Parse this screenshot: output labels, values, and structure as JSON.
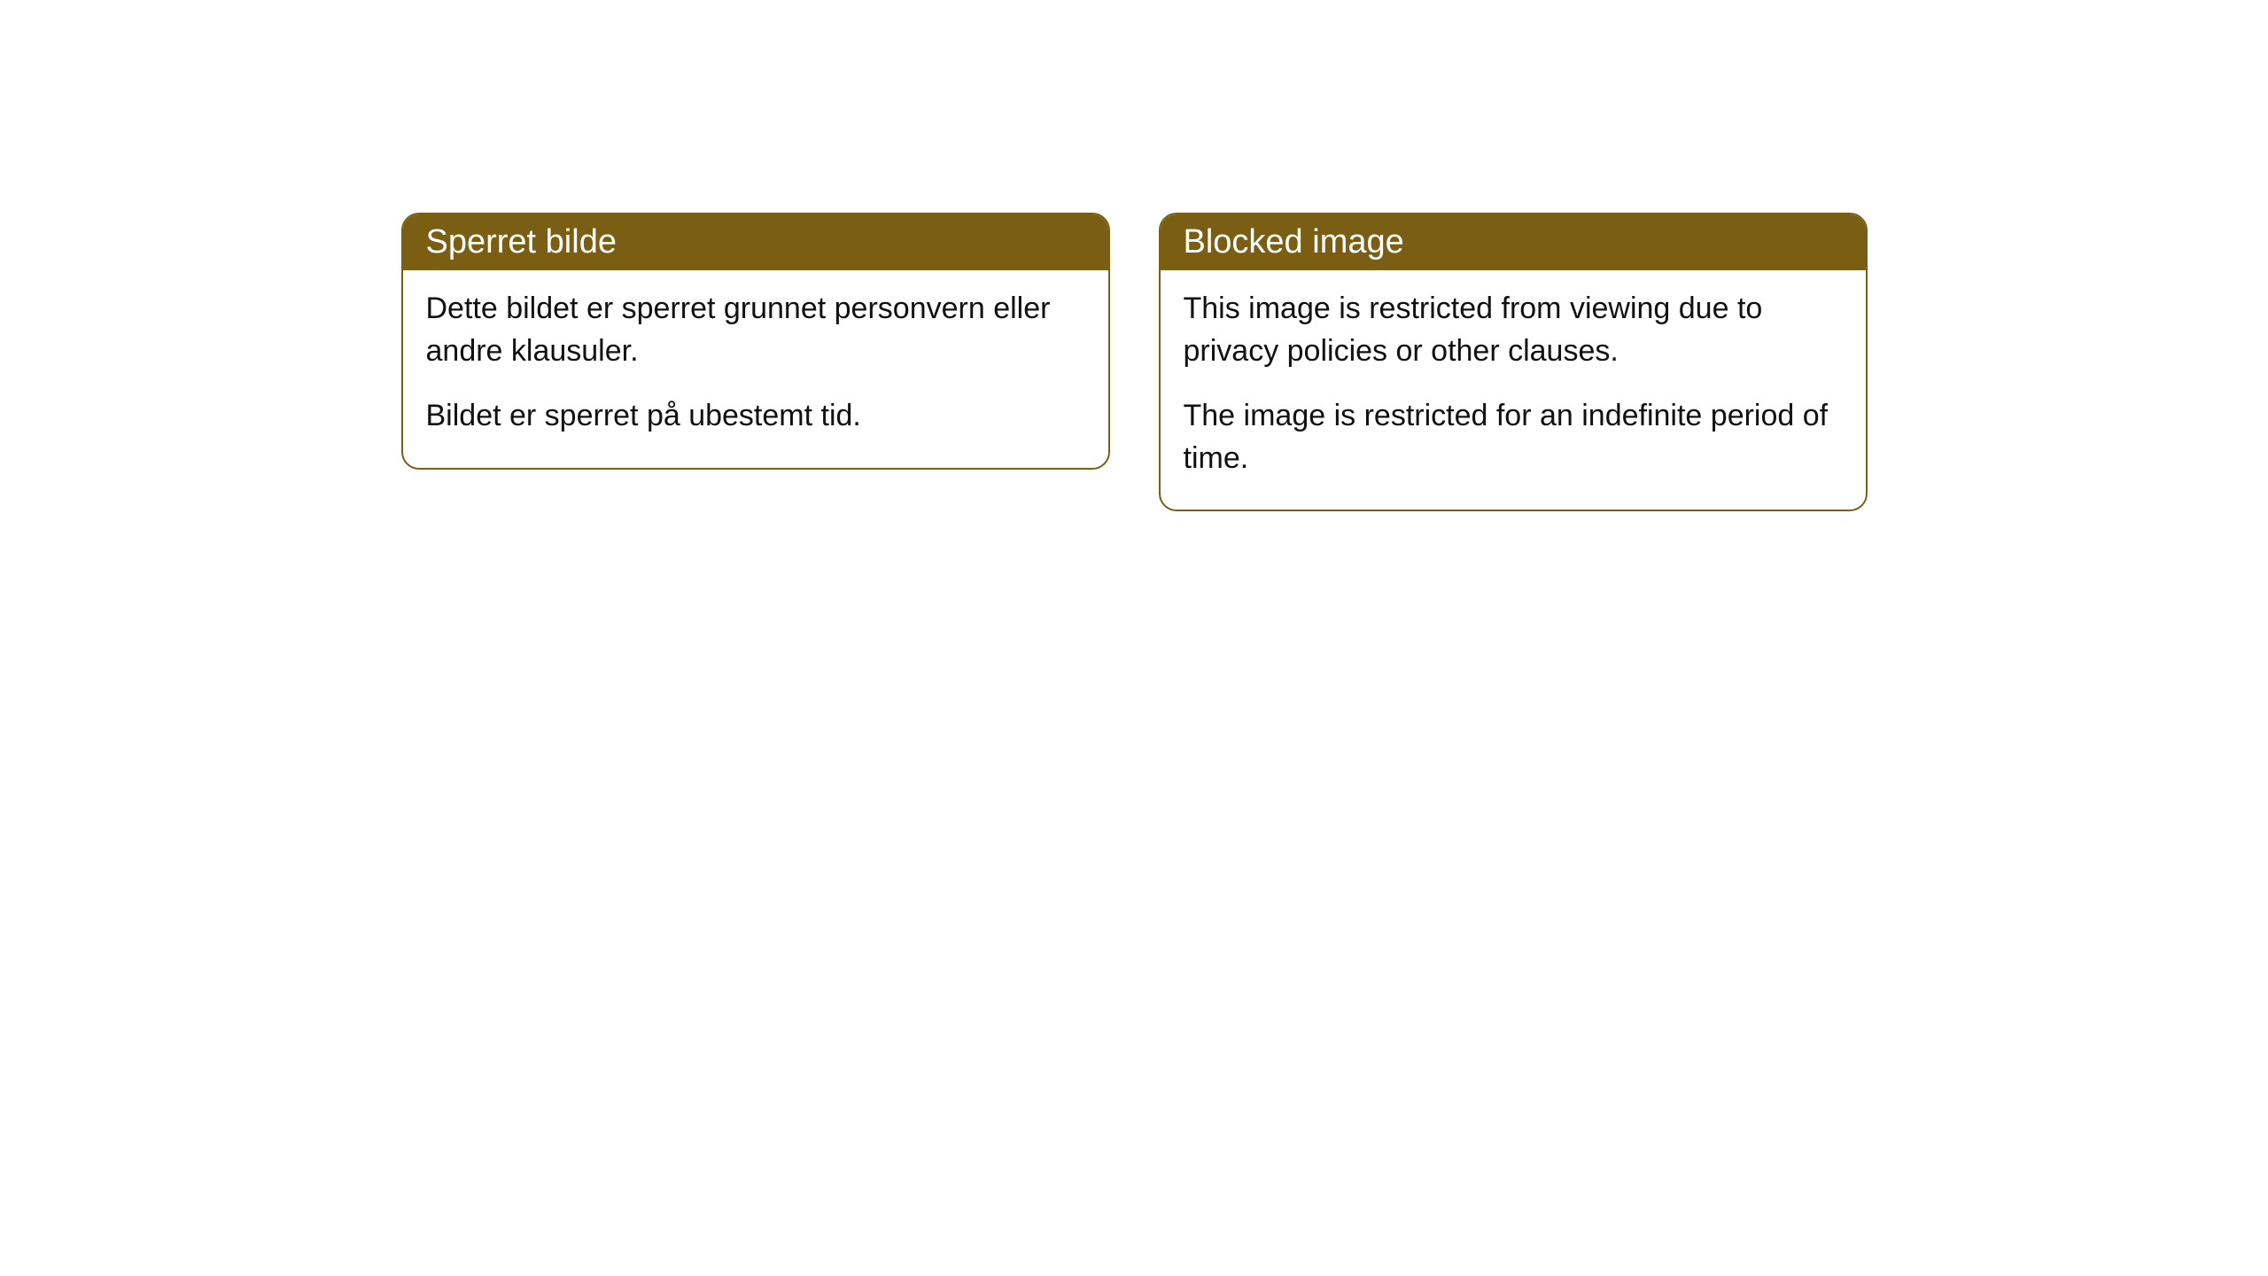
{
  "cards": [
    {
      "title": "Sperret bilde",
      "paragraph1": "Dette bildet er sperret grunnet personvern eller andre klausuler.",
      "paragraph2": "Bildet er sperret på ubestemt tid."
    },
    {
      "title": "Blocked image",
      "paragraph1": "This image is restricted from viewing due to privacy policies or other clauses.",
      "paragraph2": "The image is restricted for an indefinite period of time."
    }
  ],
  "style": {
    "header_bg_color": "#7a5e13",
    "header_text_color": "#ffffff",
    "border_color": "#7a5e13",
    "body_bg_color": "#ffffff",
    "body_text_color": "#111111",
    "border_radius": 20,
    "title_fontsize": 38,
    "body_fontsize": 34
  }
}
